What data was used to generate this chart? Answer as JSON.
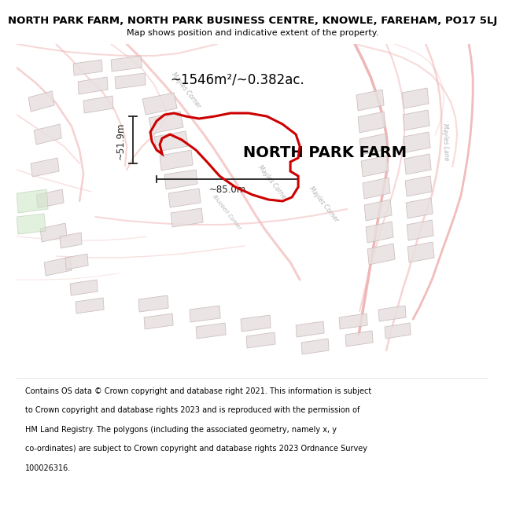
{
  "title": "NORTH PARK FARM, NORTH PARK BUSINESS CENTRE, KNOWLE, FAREHAM, PO17 5LJ",
  "subtitle": "Map shows position and indicative extent of the property.",
  "footer_lines": [
    "Contains OS data © Crown copyright and database right 2021. This information is subject",
    "to Crown copyright and database rights 2023 and is reproduced with the permission of",
    "HM Land Registry. The polygons (including the associated geometry, namely x, y",
    "co-ordinates) are subject to Crown copyright and database rights 2023 Ordnance Survey",
    "100026316."
  ],
  "area_label": "~1546m²/~0.382ac.",
  "property_name": "NORTH PARK FARM",
  "dim_h": "~85.0m",
  "dim_v": "~51.9m",
  "map_bg": "#fdf9f9",
  "road_color_light": "#f2b8b8",
  "road_color_mid": "#e89898",
  "building_fill": "#e8e0e0",
  "building_outline": "#c8b8b8",
  "green_fill": "#d0e8c8",
  "green_outline": "#b0c8a8",
  "property_color": "#cc0000",
  "dim_color": "#222222",
  "title_fontsize": 9.5,
  "subtitle_fontsize": 8,
  "footer_fontsize": 7,
  "area_fontsize": 12,
  "property_name_fontsize": 14,
  "dim_fontsize": 8.5
}
